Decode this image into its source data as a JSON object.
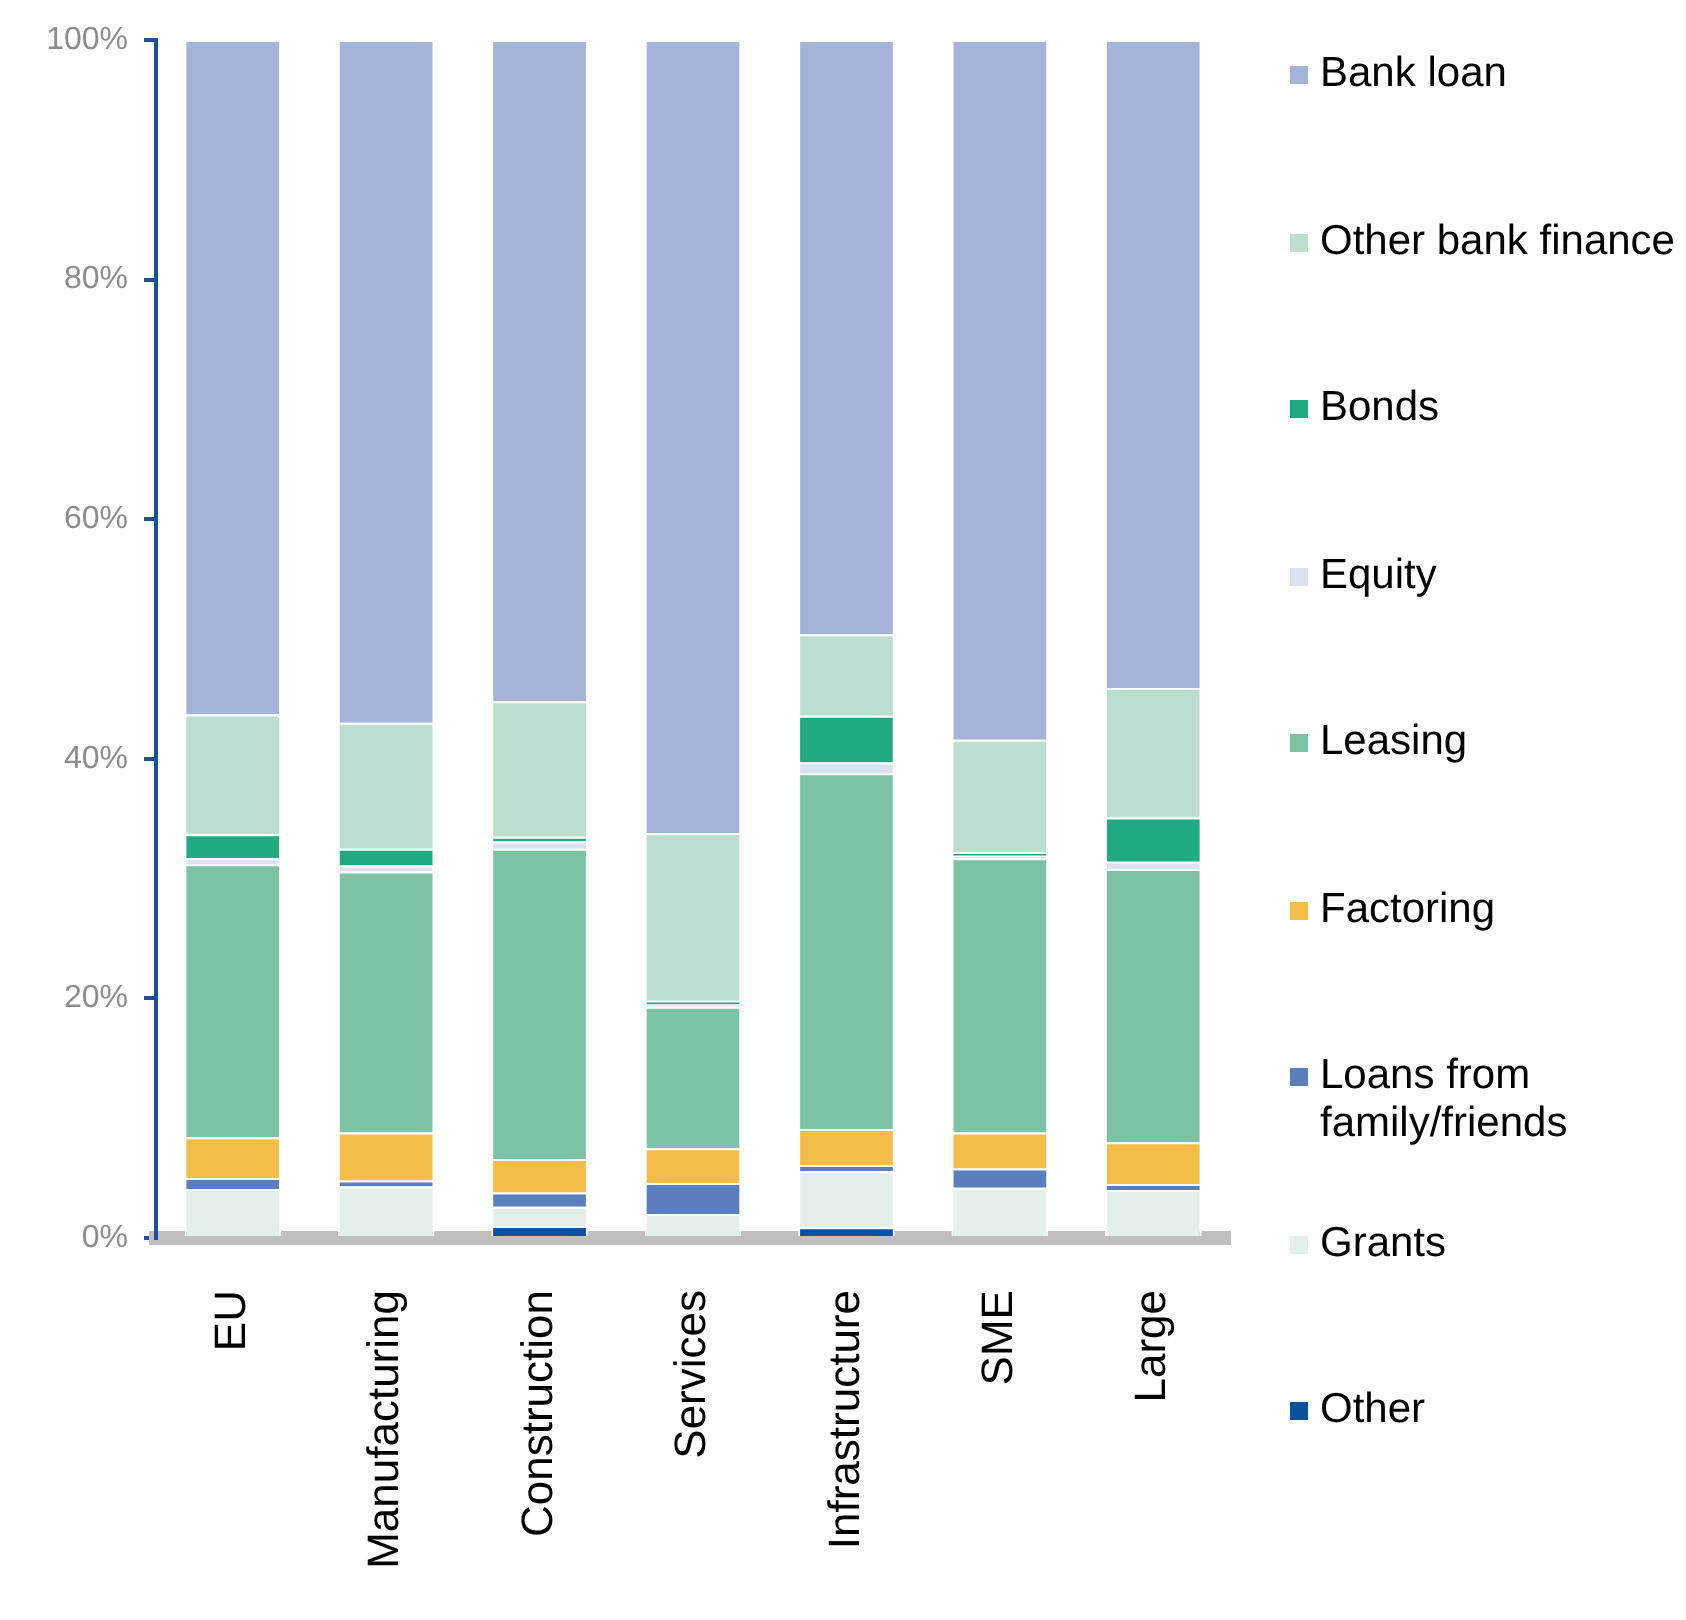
{
  "chart_data": {
    "type": "bar",
    "stacked": true,
    "legend": "right",
    "grid": false,
    "categories": [
      "EU",
      "Manufacturing",
      "Construction",
      "Services",
      "Infrastructure",
      "SME",
      "Large"
    ],
    "ylim": [
      0,
      100
    ],
    "yticks": [
      {
        "value": 0,
        "label": "0%"
      },
      {
        "value": 20,
        "label": "20%"
      },
      {
        "value": 40,
        "label": "40%"
      },
      {
        "value": 60,
        "label": "60%"
      },
      {
        "value": 80,
        "label": "80%"
      },
      {
        "value": 100,
        "label": "100%"
      }
    ],
    "series": [
      {
        "name": "Other",
        "color": "#0b4fa0",
        "values": [
          0,
          0,
          1.0,
          0,
          0.9,
          0,
          0
        ]
      },
      {
        "name": "Grants",
        "color": "#e3f0ea",
        "values": [
          4.1,
          4.3,
          1.6,
          2.0,
          4.7,
          4.2,
          4.0
        ]
      },
      {
        "name": "Loans from family/friends",
        "color": "#5a7fbd",
        "values": [
          0.9,
          0.5,
          1.2,
          2.6,
          0.5,
          1.6,
          0.5
        ]
      },
      {
        "name": "Factoring",
        "color": "#f2be48",
        "values": [
          3.4,
          4.0,
          2.8,
          2.9,
          3.0,
          3.0,
          3.5
        ]
      },
      {
        "name": "Leasing",
        "color": "#7bc3a4",
        "values": [
          22.8,
          21.8,
          25.9,
          11.8,
          29.7,
          22.9,
          22.8
        ]
      },
      {
        "name": "Equity",
        "color": "#dde0f0",
        "values": [
          0.5,
          0.5,
          0.6,
          0.2,
          0.9,
          0.2,
          0.6
        ]
      },
      {
        "name": "Bonds",
        "color": "#1faa80",
        "values": [
          2.0,
          1.4,
          0.4,
          0.3,
          3.9,
          0.3,
          3.7
        ]
      },
      {
        "name": "Other bank finance",
        "color": "#bbdece",
        "values": [
          10.0,
          10.5,
          11.3,
          14.0,
          6.8,
          9.4,
          10.8
        ]
      },
      {
        "name": "Bank loan",
        "color": "#a5b3d9",
        "values": [
          56.3,
          57.0,
          55.2,
          66.2,
          49.6,
          58.4,
          54.1
        ]
      }
    ]
  }
}
